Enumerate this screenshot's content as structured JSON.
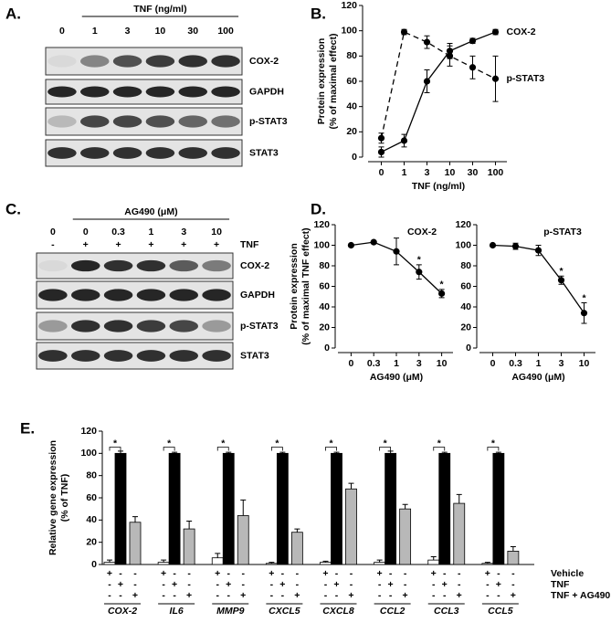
{
  "panel_labels": [
    "A.",
    "B.",
    "C.",
    "D.",
    "E."
  ],
  "blots": [
    {
      "header": "TNF (ng/ml)",
      "lanes": [
        "0",
        "1",
        "3",
        "10",
        "30",
        "100"
      ],
      "rows": [
        {
          "name": "COX-2",
          "intensity": [
            0.05,
            0.45,
            0.7,
            0.8,
            0.85,
            0.85
          ]
        },
        {
          "name": "GAPDH",
          "intensity": [
            0.9,
            0.9,
            0.9,
            0.9,
            0.9,
            0.9
          ]
        },
        {
          "name": "p-STAT3",
          "intensity": [
            0.2,
            0.75,
            0.75,
            0.7,
            0.6,
            0.55
          ]
        },
        {
          "name": "STAT3",
          "intensity": [
            0.85,
            0.85,
            0.85,
            0.85,
            0.85,
            0.85
          ]
        }
      ]
    },
    {
      "header": "AG490 (μM)",
      "lanes": [
        "0",
        "0",
        "0.3",
        "1",
        "3",
        "10"
      ],
      "treatment": {
        "name": "TNF",
        "signs": [
          "-",
          "+",
          "+",
          "+",
          "+",
          "+"
        ]
      },
      "rows": [
        {
          "name": "COX-2",
          "intensity": [
            0.05,
            0.9,
            0.85,
            0.85,
            0.65,
            0.5
          ]
        },
        {
          "name": "GAPDH",
          "intensity": [
            0.9,
            0.9,
            0.9,
            0.9,
            0.9,
            0.9
          ]
        },
        {
          "name": "p-STAT3",
          "intensity": [
            0.35,
            0.85,
            0.85,
            0.8,
            0.75,
            0.35
          ]
        },
        {
          "name": "STAT3",
          "intensity": [
            0.85,
            0.85,
            0.85,
            0.85,
            0.85,
            0.85
          ]
        }
      ]
    }
  ],
  "chart_data": [
    {
      "type": "line",
      "categories": [
        "0",
        "1",
        "3",
        "10",
        "30",
        "100"
      ],
      "x_label": "TNF (ng/ml)",
      "y_label": [
        "Protein expression",
        "(% of maximal effect)"
      ],
      "ylim": [
        0,
        120
      ],
      "yticks": [
        0,
        20,
        40,
        60,
        80,
        100,
        120
      ],
      "series": [
        {
          "name": "COX-2",
          "color": "#000000",
          "dashed": false,
          "values": [
            4,
            13,
            60,
            84,
            92,
            99
          ],
          "errors": [
            4,
            5,
            9,
            6,
            2,
            2
          ]
        },
        {
          "name": "p-STAT3",
          "color": "#000000",
          "dashed": true,
          "values": [
            15,
            99,
            91,
            80,
            71,
            62
          ],
          "errors": [
            4,
            2,
            5,
            8,
            9,
            18
          ]
        }
      ]
    },
    {
      "type": "line",
      "title": "COX-2",
      "categories": [
        "0",
        "0.3",
        "1",
        "3",
        "10"
      ],
      "x_label": "AG490 (μM)",
      "y_label": [
        "Protein expression",
        "(% of maximal TNF effect)"
      ],
      "ylim": [
        0,
        120
      ],
      "yticks": [
        0,
        20,
        40,
        60,
        80,
        100,
        120
      ],
      "series": [
        {
          "color": "#000000",
          "dashed": false,
          "values": [
            100,
            103,
            94,
            74,
            53
          ],
          "errors": [
            0,
            1,
            13,
            7,
            4
          ],
          "significance": [
            null,
            null,
            null,
            "*",
            "*"
          ]
        }
      ]
    },
    {
      "type": "line",
      "title": "p-STAT3",
      "categories": [
        "0",
        "0.3",
        "1",
        "3",
        "10"
      ],
      "x_label": "AG490 (μM)",
      "ylim": [
        0,
        120
      ],
      "yticks": [
        0,
        20,
        40,
        60,
        80,
        100,
        120
      ],
      "series": [
        {
          "color": "#000000",
          "dashed": false,
          "values": [
            100,
            99,
            95,
            66,
            34
          ],
          "errors": [
            0,
            3,
            5,
            4,
            10
          ],
          "significance": [
            null,
            null,
            null,
            "*",
            "*"
          ]
        }
      ]
    },
    {
      "type": "bar",
      "categories": [
        "COX-2",
        "IL6",
        "MMP9",
        "CXCL5",
        "CXCL8",
        "CCL2",
        "CCL3",
        "CCL5"
      ],
      "y_label": [
        "Relative gene expression",
        "(% of TNF)"
      ],
      "ylim": [
        0,
        120
      ],
      "yticks": [
        0,
        20,
        40,
        60,
        80,
        100,
        120
      ],
      "signs": {
        "present": "+",
        "absent": "-"
      },
      "significance_label": "*",
      "series": [
        {
          "name": "Vehicle",
          "color": "#ffffff",
          "values": [
            2,
            2,
            6,
            1,
            2,
            2,
            4,
            1
          ],
          "errors": [
            2,
            2,
            4,
            1,
            1,
            2,
            3,
            1
          ]
        },
        {
          "name": "TNF",
          "color": "#000000",
          "values": [
            100,
            100,
            100,
            100,
            100,
            100,
            100,
            100
          ],
          "errors": [
            2,
            1,
            1,
            1,
            1,
            2,
            1,
            1
          ]
        },
        {
          "name": "TNF + AG490",
          "color": "#b8b8b8",
          "values": [
            38,
            32,
            44,
            29,
            68,
            50,
            55,
            12
          ],
          "errors": [
            5,
            7,
            14,
            3,
            5,
            4,
            8,
            4
          ]
        }
      ]
    }
  ]
}
